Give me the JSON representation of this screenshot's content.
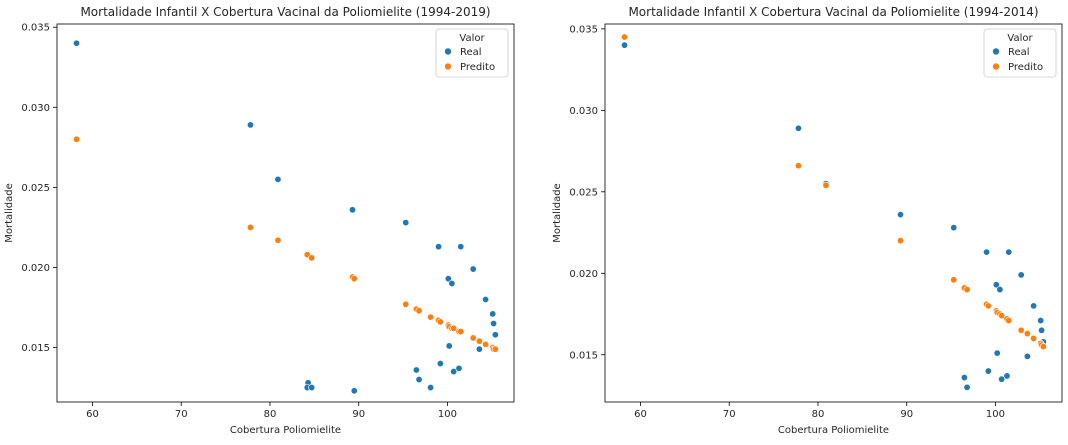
{
  "chart_data": [
    {
      "type": "scatter",
      "title": "Mortalidade Infantil X Cobertura Vacinal da Poliomielite (1994-2019)",
      "xlabel": "Cobertura Poliomielite",
      "ylabel": "Mortalidade",
      "xlim": [
        56,
        107.5
      ],
      "ylim": [
        0.0116,
        0.0352
      ],
      "xticks": [
        60,
        70,
        80,
        90,
        100
      ],
      "yticks": [
        0.015,
        0.02,
        0.025,
        0.03,
        0.035
      ],
      "ytick_labels": [
        "0.015",
        "0.020",
        "0.025",
        "0.030",
        "0.035"
      ],
      "grid": false,
      "legend": {
        "title": "Valor",
        "position": "top-right"
      },
      "series": [
        {
          "name": "Real",
          "color": "#1f77b4",
          "points": [
            [
              58.2,
              0.034
            ],
            [
              77.8,
              0.0289
            ],
            [
              80.9,
              0.0255
            ],
            [
              89.3,
              0.0236
            ],
            [
              95.3,
              0.0228
            ],
            [
              99.0,
              0.0213
            ],
            [
              101.5,
              0.0213
            ],
            [
              102.9,
              0.0199
            ],
            [
              100.1,
              0.0193
            ],
            [
              100.5,
              0.019
            ],
            [
              104.3,
              0.018
            ],
            [
              105.1,
              0.0171
            ],
            [
              105.2,
              0.0165
            ],
            [
              105.4,
              0.0158
            ],
            [
              100.2,
              0.0151
            ],
            [
              103.6,
              0.0149
            ],
            [
              99.2,
              0.014
            ],
            [
              96.5,
              0.0136
            ],
            [
              101.3,
              0.0137
            ],
            [
              100.7,
              0.0135
            ],
            [
              96.8,
              0.013
            ],
            [
              84.3,
              0.0128
            ],
            [
              84.2,
              0.0125
            ],
            [
              84.7,
              0.0125
            ],
            [
              98.1,
              0.0125
            ],
            [
              89.5,
              0.0123
            ]
          ]
        },
        {
          "name": "Predito",
          "color": "#ff7f0e",
          "points": [
            [
              58.2,
              0.028
            ],
            [
              77.8,
              0.0225
            ],
            [
              80.9,
              0.0217
            ],
            [
              84.2,
              0.0208
            ],
            [
              84.7,
              0.0206
            ],
            [
              89.3,
              0.0194
            ],
            [
              89.5,
              0.0193
            ],
            [
              95.3,
              0.0177
            ],
            [
              96.5,
              0.0174
            ],
            [
              96.8,
              0.0173
            ],
            [
              98.1,
              0.0169
            ],
            [
              99.0,
              0.0167
            ],
            [
              99.2,
              0.0166
            ],
            [
              100.1,
              0.0164
            ],
            [
              100.2,
              0.0163
            ],
            [
              100.5,
              0.0162
            ],
            [
              100.7,
              0.0162
            ],
            [
              101.3,
              0.016
            ],
            [
              101.5,
              0.016
            ],
            [
              102.9,
              0.0156
            ],
            [
              103.6,
              0.0154
            ],
            [
              104.3,
              0.0152
            ],
            [
              105.1,
              0.015
            ],
            [
              105.2,
              0.0149
            ],
            [
              105.4,
              0.0149
            ]
          ]
        }
      ]
    },
    {
      "type": "scatter",
      "title": "Mortalidade Infantil X Cobertura Vacinal da Poliomielite (1994-2014)",
      "xlabel": "Cobertura Poliomielite",
      "ylabel": "Mortalidade",
      "xlim": [
        56,
        107.5
      ],
      "ylim": [
        0.0121,
        0.0353
      ],
      "xticks": [
        60,
        70,
        80,
        90,
        100
      ],
      "yticks": [
        0.015,
        0.02,
        0.025,
        0.03,
        0.035
      ],
      "ytick_labels": [
        "0.015",
        "0.020",
        "0.025",
        "0.030",
        "0.035"
      ],
      "grid": false,
      "legend": {
        "title": "Valor",
        "position": "top-right"
      },
      "series": [
        {
          "name": "Real",
          "color": "#1f77b4",
          "points": [
            [
              58.2,
              0.034
            ],
            [
              77.8,
              0.0289
            ],
            [
              80.9,
              0.0255
            ],
            [
              89.3,
              0.0236
            ],
            [
              95.3,
              0.0228
            ],
            [
              99.0,
              0.0213
            ],
            [
              101.5,
              0.0213
            ],
            [
              102.9,
              0.0199
            ],
            [
              100.1,
              0.0193
            ],
            [
              100.5,
              0.019
            ],
            [
              104.3,
              0.018
            ],
            [
              105.1,
              0.0171
            ],
            [
              105.2,
              0.0165
            ],
            [
              105.4,
              0.0158
            ],
            [
              100.2,
              0.0151
            ],
            [
              103.6,
              0.0149
            ],
            [
              99.2,
              0.014
            ],
            [
              96.5,
              0.0136
            ],
            [
              101.3,
              0.0137
            ],
            [
              100.7,
              0.0135
            ],
            [
              96.8,
              0.013
            ]
          ]
        },
        {
          "name": "Predito",
          "color": "#ff7f0e",
          "points": [
            [
              58.2,
              0.0345
            ],
            [
              77.8,
              0.0266
            ],
            [
              80.9,
              0.0254
            ],
            [
              89.3,
              0.022
            ],
            [
              95.3,
              0.0196
            ],
            [
              96.5,
              0.0191
            ],
            [
              96.8,
              0.019
            ],
            [
              99.0,
              0.0181
            ],
            [
              99.2,
              0.018
            ],
            [
              100.1,
              0.0177
            ],
            [
              100.2,
              0.0176
            ],
            [
              100.5,
              0.0175
            ],
            [
              100.7,
              0.0174
            ],
            [
              101.3,
              0.0172
            ],
            [
              101.5,
              0.0171
            ],
            [
              102.9,
              0.0165
            ],
            [
              103.6,
              0.0163
            ],
            [
              104.3,
              0.016
            ],
            [
              105.1,
              0.0157
            ],
            [
              105.2,
              0.0156
            ],
            [
              105.4,
              0.0155
            ]
          ]
        }
      ]
    }
  ]
}
